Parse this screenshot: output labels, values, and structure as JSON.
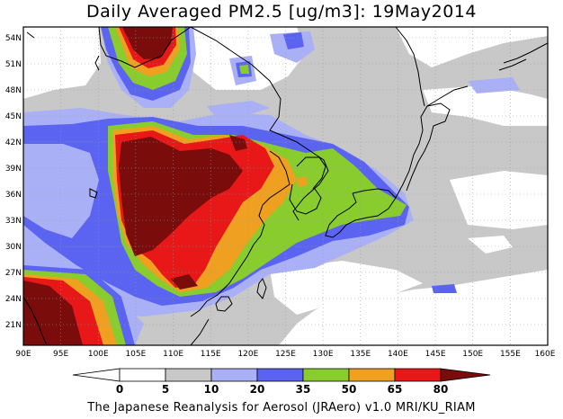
{
  "title": "Daily Averaged PM2.5 [ug/m3]: 19May2014",
  "footer": "The Japanese Reanalysis for Aerosol (JRAero) v1.0 MRI/KU_RIAM",
  "map": {
    "lat_labels": [
      "54N",
      "51N",
      "48N",
      "45N",
      "42N",
      "39N",
      "36N",
      "33N",
      "30N",
      "27N",
      "24N",
      "21N"
    ],
    "lon_labels": [
      "90E",
      "95E",
      "100E",
      "105E",
      "110E",
      "115E",
      "120E",
      "125E",
      "130E",
      "135E",
      "140E",
      "145E",
      "150E",
      "155E",
      "160E"
    ]
  },
  "colorbar": {
    "labels": [
      "0",
      "5",
      "10",
      "20",
      "35",
      "50",
      "65",
      "80"
    ],
    "colors": [
      "#ffffff",
      "#c8c8c8",
      "#aab0f5",
      "#5a64f0",
      "#88cc2e",
      "#f0a020",
      "#e81818",
      "#7a0c0c"
    ]
  }
}
